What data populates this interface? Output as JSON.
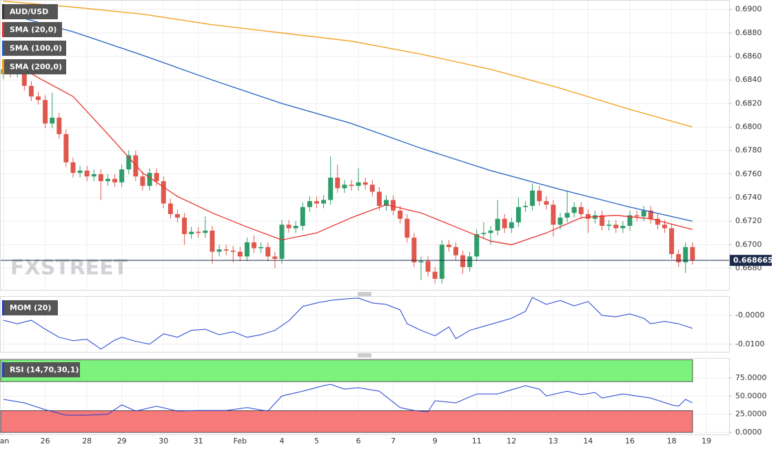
{
  "chart_data": [
    {
      "type": "candlestick",
      "title": "AUD/USD",
      "watermark": "FXSTREET",
      "last_price": 0.668665,
      "up_color": "#2e9d6a",
      "down_color": "#e0584d",
      "grid": true,
      "ylim": [
        0.6661,
        0.6908
      ],
      "yticks": [
        {
          "value": 0.69,
          "label": "0.6900"
        },
        {
          "value": 0.688,
          "label": "0.6880"
        },
        {
          "value": 0.686,
          "label": "0.6860"
        },
        {
          "value": 0.684,
          "label": "0.6840"
        },
        {
          "value": 0.682,
          "label": "0.6820"
        },
        {
          "value": 0.68,
          "label": "0.6800"
        },
        {
          "value": 0.678,
          "label": "0.6780"
        },
        {
          "value": 0.676,
          "label": "0.6760"
        },
        {
          "value": 0.674,
          "label": "0.6740"
        },
        {
          "value": 0.672,
          "label": "0.6720"
        },
        {
          "value": 0.67,
          "label": "0.6700"
        },
        {
          "value": 0.668,
          "label": "0.6680"
        }
      ],
      "categories": [
        "Jan",
        null,
        null,
        null,
        null,
        null,
        "26",
        null,
        null,
        null,
        null,
        null,
        "28",
        null,
        null,
        null,
        null,
        "29",
        null,
        null,
        null,
        null,
        null,
        "30",
        null,
        null,
        null,
        null,
        "31",
        null,
        null,
        null,
        null,
        null,
        "Feb",
        null,
        null,
        null,
        null,
        null,
        "4",
        null,
        null,
        null,
        null,
        "5",
        null,
        null,
        null,
        null,
        null,
        "6",
        null,
        null,
        null,
        null,
        "7",
        null,
        null,
        null,
        null,
        null,
        "9",
        null,
        null,
        null,
        null,
        null,
        "11",
        null,
        null,
        null,
        null,
        "12",
        null,
        null,
        null,
        null,
        null,
        "13",
        null,
        null,
        null,
        null,
        "14",
        null,
        null,
        null,
        null,
        null,
        "16",
        null,
        null,
        null,
        null,
        null,
        "18",
        null,
        null,
        null,
        null,
        "19"
      ],
      "candles": [
        [
          0.6845,
          0.6853,
          0.6841,
          0.6849
        ],
        [
          0.6849,
          0.6853,
          0.6842,
          0.6846
        ],
        [
          0.6846,
          0.6853,
          0.6842,
          0.6849
        ],
        [
          0.6849,
          0.6853,
          0.6831,
          0.6835
        ],
        [
          0.6835,
          0.6839,
          0.6822,
          0.6826
        ],
        [
          0.6826,
          0.683,
          0.6819,
          0.6823
        ],
        [
          0.6823,
          0.6827,
          0.6799,
          0.6803
        ],
        [
          0.6803,
          0.6829,
          0.6799,
          0.6808
        ],
        [
          0.6808,
          0.6812,
          0.679,
          0.6794
        ],
        [
          0.6794,
          0.6798,
          0.6766,
          0.677
        ],
        [
          0.677,
          0.6774,
          0.6757,
          0.6761
        ],
        [
          0.6761,
          0.6767,
          0.6757,
          0.6763
        ],
        [
          0.6763,
          0.6767,
          0.6754,
          0.6758
        ],
        [
          0.6758,
          0.6764,
          0.6754,
          0.676
        ],
        [
          0.676,
          0.6764,
          0.6738,
          0.6754
        ],
        [
          0.6754,
          0.676,
          0.675,
          0.6756
        ],
        [
          0.6756,
          0.676,
          0.6749,
          0.6753
        ],
        [
          0.6753,
          0.6768,
          0.6749,
          0.6764
        ],
        [
          0.6764,
          0.678,
          0.676,
          0.6776
        ],
        [
          0.6776,
          0.678,
          0.6754,
          0.6758
        ],
        [
          0.6758,
          0.6762,
          0.6746,
          0.675
        ],
        [
          0.675,
          0.6765,
          0.6746,
          0.6761
        ],
        [
          0.6761,
          0.6765,
          0.675,
          0.6754
        ],
        [
          0.6754,
          0.6758,
          0.6731,
          0.6735
        ],
        [
          0.6735,
          0.6739,
          0.6722,
          0.6726
        ],
        [
          0.6726,
          0.673,
          0.6719,
          0.6723
        ],
        [
          0.6723,
          0.6727,
          0.67,
          0.6709
        ],
        [
          0.6709,
          0.6715,
          0.6705,
          0.6711
        ],
        [
          0.6711,
          0.6715,
          0.6706,
          0.671
        ],
        [
          0.671,
          0.6724,
          0.6706,
          0.6712
        ],
        [
          0.6712,
          0.6716,
          0.6684,
          0.6694
        ],
        [
          0.6694,
          0.67,
          0.669,
          0.6696
        ],
        [
          0.6696,
          0.67,
          0.6691,
          0.6695
        ],
        [
          0.6695,
          0.6699,
          0.6685,
          0.6694
        ],
        [
          0.6694,
          0.6698,
          0.6686,
          0.669
        ],
        [
          0.669,
          0.6706,
          0.6686,
          0.6702
        ],
        [
          0.6702,
          0.6708,
          0.6693,
          0.6697
        ],
        [
          0.6697,
          0.6702,
          0.6693,
          0.6698
        ],
        [
          0.6698,
          0.6702,
          0.6686,
          0.669
        ],
        [
          0.669,
          0.6694,
          0.668,
          0.6688
        ],
        [
          0.6688,
          0.6721,
          0.6684,
          0.6717
        ],
        [
          0.6717,
          0.6721,
          0.671,
          0.6714
        ],
        [
          0.6714,
          0.672,
          0.671,
          0.6716
        ],
        [
          0.6716,
          0.6736,
          0.6712,
          0.6732
        ],
        [
          0.6732,
          0.6741,
          0.6728,
          0.6737
        ],
        [
          0.6737,
          0.6741,
          0.6731,
          0.6735
        ],
        [
          0.6735,
          0.6742,
          0.6731,
          0.6738
        ],
        [
          0.6738,
          0.6775,
          0.6734,
          0.6757
        ],
        [
          0.6757,
          0.6768,
          0.6744,
          0.6748
        ],
        [
          0.6748,
          0.6755,
          0.6744,
          0.6751
        ],
        [
          0.6751,
          0.6755,
          0.6746,
          0.675
        ],
        [
          0.675,
          0.6765,
          0.6746,
          0.6753
        ],
        [
          0.6753,
          0.6757,
          0.6747,
          0.6751
        ],
        [
          0.6751,
          0.6755,
          0.6741,
          0.6745
        ],
        [
          0.6745,
          0.6749,
          0.6729,
          0.6733
        ],
        [
          0.6733,
          0.6742,
          0.6729,
          0.6738
        ],
        [
          0.6738,
          0.6742,
          0.6725,
          0.6729
        ],
        [
          0.6729,
          0.6733,
          0.6718,
          0.6722
        ],
        [
          0.6722,
          0.6726,
          0.6702,
          0.6706
        ],
        [
          0.6706,
          0.671,
          0.6681,
          0.6685
        ],
        [
          0.6685,
          0.669,
          0.667,
          0.6686
        ],
        [
          0.6686,
          0.669,
          0.6673,
          0.6677
        ],
        [
          0.6677,
          0.6681,
          0.6667,
          0.6671
        ],
        [
          0.6671,
          0.6704,
          0.6667,
          0.67
        ],
        [
          0.67,
          0.6704,
          0.6694,
          0.6698
        ],
        [
          0.6698,
          0.6702,
          0.6687,
          0.6691
        ],
        [
          0.6691,
          0.6695,
          0.6675,
          0.6681
        ],
        [
          0.6681,
          0.6694,
          0.6677,
          0.669
        ],
        [
          0.669,
          0.6713,
          0.6686,
          0.6709
        ],
        [
          0.6709,
          0.6719,
          0.6705,
          0.671
        ],
        [
          0.671,
          0.6716,
          0.67,
          0.6712
        ],
        [
          0.6712,
          0.6738,
          0.6708,
          0.6722
        ],
        [
          0.6722,
          0.6726,
          0.671,
          0.6714
        ],
        [
          0.6714,
          0.6723,
          0.671,
          0.6719
        ],
        [
          0.6719,
          0.674,
          0.6715,
          0.6732
        ],
        [
          0.6732,
          0.6737,
          0.6728,
          0.6733
        ],
        [
          0.6733,
          0.6752,
          0.6729,
          0.6746
        ],
        [
          0.6746,
          0.675,
          0.6733,
          0.6737
        ],
        [
          0.6737,
          0.6741,
          0.673,
          0.6734
        ],
        [
          0.6734,
          0.6738,
          0.6707,
          0.6717
        ],
        [
          0.6717,
          0.6727,
          0.6713,
          0.6723
        ],
        [
          0.6723,
          0.6746,
          0.6719,
          0.6727
        ],
        [
          0.6727,
          0.6736,
          0.6723,
          0.6732
        ],
        [
          0.6732,
          0.6736,
          0.6722,
          0.6726
        ],
        [
          0.6726,
          0.673,
          0.671,
          0.6722
        ],
        [
          0.6722,
          0.6729,
          0.6718,
          0.6725
        ],
        [
          0.6725,
          0.6729,
          0.6712,
          0.6716
        ],
        [
          0.6716,
          0.6721,
          0.6712,
          0.6717
        ],
        [
          0.6717,
          0.6721,
          0.671,
          0.6714
        ],
        [
          0.6714,
          0.672,
          0.671,
          0.6716
        ],
        [
          0.6716,
          0.6729,
          0.6712,
          0.6725
        ],
        [
          0.6725,
          0.6729,
          0.672,
          0.6724
        ],
        [
          0.6724,
          0.6733,
          0.672,
          0.6729
        ],
        [
          0.6729,
          0.6733,
          0.6718,
          0.6722
        ],
        [
          0.6722,
          0.6726,
          0.6713,
          0.6717
        ],
        [
          0.6717,
          0.6721,
          0.671,
          0.6714
        ],
        [
          0.6714,
          0.6718,
          0.6688,
          0.6692
        ],
        [
          0.6692,
          0.6696,
          0.6681,
          0.6685
        ],
        [
          0.6685,
          0.6702,
          0.6676,
          0.6698
        ],
        [
          0.6698,
          0.6702,
          0.6683,
          0.6687
        ],
        null,
        null
      ],
      "series": [
        {
          "name": "SMA (20,0)",
          "color": "#e8302b",
          "x": [
            3,
            5,
            10,
            15,
            20,
            25,
            30,
            35,
            40,
            45,
            50,
            55,
            60,
            65,
            70,
            73,
            78,
            83,
            88,
            93,
            99
          ],
          "values": [
            0.6849,
            0.6842,
            0.6826,
            0.6794,
            0.6761,
            0.6741,
            0.6727,
            0.6715,
            0.6704,
            0.671,
            0.6723,
            0.6734,
            0.6727,
            0.6715,
            0.6703,
            0.67,
            0.671,
            0.6723,
            0.6725,
            0.6722,
            0.6713
          ]
        },
        {
          "name": "SMA (100,0)",
          "color": "#1f5fbf",
          "x": [
            0,
            10,
            20,
            30,
            40,
            50,
            60,
            70,
            80,
            90,
            99
          ],
          "values": [
            0.6897,
            0.6881,
            0.6861,
            0.684,
            0.682,
            0.6803,
            0.6782,
            0.6763,
            0.6747,
            0.6732,
            0.672
          ]
        },
        {
          "name": "SMA (200,0)",
          "color": "#f39c12",
          "x": [
            0,
            10,
            20,
            30,
            40,
            50,
            60,
            70,
            80,
            90,
            99
          ],
          "values": [
            0.6907,
            0.6902,
            0.6896,
            0.6887,
            0.688,
            0.6873,
            0.6862,
            0.6849,
            0.6833,
            0.6815,
            0.68
          ]
        }
      ]
    },
    {
      "type": "line",
      "title": "MOM (20)",
      "color": "#1f3fd1",
      "ylim": [
        -0.0129,
        0.0067
      ],
      "yticks": [
        {
          "value": 0,
          "label": "-0.0000"
        },
        {
          "value": -0.01,
          "label": "-0.0100"
        }
      ],
      "x": [
        0,
        2,
        4,
        6,
        8,
        10,
        12,
        14,
        16,
        17,
        19,
        21,
        23,
        25,
        27,
        29,
        31,
        33,
        35,
        37,
        39,
        41,
        43,
        45,
        47,
        49,
        51,
        53,
        55,
        57,
        58,
        60,
        62,
        64,
        65,
        67,
        69,
        71,
        73,
        75,
        76,
        78,
        80,
        82,
        84,
        86,
        88,
        90,
        92,
        93,
        95,
        97,
        99
      ],
      "values": [
        -0.0017,
        -0.0029,
        -0.0017,
        -0.0048,
        -0.0076,
        -0.0088,
        -0.0083,
        -0.0117,
        -0.0086,
        -0.0076,
        -0.009,
        -0.01,
        -0.0064,
        -0.0076,
        -0.0052,
        -0.0048,
        -0.0067,
        -0.0057,
        -0.0076,
        -0.0067,
        -0.0052,
        -0.0019,
        0.0031,
        0.0043,
        0.0052,
        0.0057,
        0.006,
        0.0043,
        0.0038,
        0.0019,
        -0.0029,
        -0.0052,
        -0.0071,
        -0.004,
        -0.0081,
        -0.0052,
        -0.0038,
        -0.0024,
        -0.001,
        0.0014,
        0.0062,
        0.0038,
        0.0052,
        0.0033,
        0.0048,
        0,
        -0.0005,
        0.0005,
        -0.001,
        -0.0029,
        -0.0021,
        -0.0029,
        -0.0045
      ]
    },
    {
      "type": "line",
      "title": "RSI (14,70,30,1)",
      "color": "#1f3fd1",
      "ylim": [
        -3.8,
        101.5
      ],
      "yticks": [
        {
          "value": 75,
          "label": "75.0000"
        },
        {
          "value": 50,
          "label": "50.0000"
        },
        {
          "value": 25,
          "label": "25.0000"
        },
        {
          "value": 0,
          "label": "0.0000"
        }
      ],
      "bands": [
        {
          "from": 70,
          "to": 100,
          "color": "#7df27d"
        },
        {
          "from": 0,
          "to": 30,
          "color": "#f77a7a"
        }
      ],
      "x": [
        0,
        3,
        6,
        9,
        12,
        15,
        17,
        19,
        22,
        25,
        28,
        32,
        35,
        38,
        40,
        43,
        46,
        47,
        49,
        51,
        54,
        57,
        59,
        61,
        62,
        65,
        68,
        71,
        73,
        75,
        77,
        78,
        81,
        83,
        85,
        86,
        89,
        91,
        93,
        96,
        97,
        98,
        99
      ],
      "values": [
        45.5,
        40.7,
        31.3,
        23.7,
        23.7,
        25,
        37.9,
        29.4,
        36,
        29.4,
        30.3,
        30.3,
        34.1,
        29.4,
        50.2,
        56.8,
        64.4,
        66.3,
        59.7,
        61.6,
        56.8,
        34.1,
        30.3,
        28.4,
        43.6,
        40.7,
        53,
        53,
        58.7,
        64.4,
        59.7,
        50.2,
        56.8,
        52,
        55,
        47.3,
        53,
        50.2,
        47.3,
        37.9,
        36,
        45.5,
        40.7
      ]
    }
  ]
}
